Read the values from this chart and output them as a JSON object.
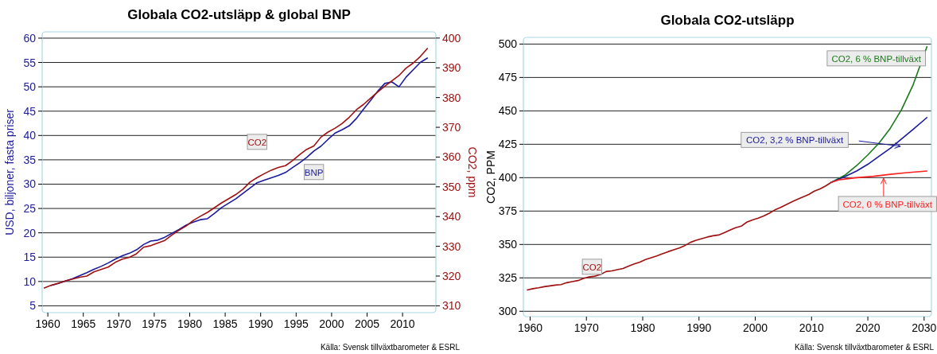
{
  "chart_data": [
    {
      "type": "line",
      "title": "Globala CO2-utsläpp & global BNP",
      "ylabel": "USD, biljoner, fasta priser",
      "y2label": "CO2, ppm",
      "xlim": [
        1959.2,
        2014.7
      ],
      "xticks": [
        1960,
        1965,
        1970,
        1975,
        1980,
        1985,
        1990,
        1995,
        2000,
        2005,
        2010
      ],
      "ylim": [
        3.6,
        61.3
      ],
      "yticks": [
        5,
        10,
        15,
        20,
        25,
        30,
        35,
        40,
        45,
        50,
        55,
        60
      ],
      "y2lim": [
        307.7,
        402.1
      ],
      "y2ticks": [
        310,
        320,
        330,
        340,
        350,
        360,
        370,
        380,
        390,
        400
      ],
      "grid": "y",
      "annotations": [
        "Källa: Svensk tillväxtbarometer & ESRL"
      ],
      "series": [
        {
          "name": "BNP",
          "color": "#1a1a9c",
          "axis": "y",
          "x": [
            1960.5,
            1961.5,
            1962.5,
            1963.5,
            1964.5,
            1965.5,
            1966.5,
            1967.5,
            1968.5,
            1969.5,
            1970.5,
            1971.5,
            1972.5,
            1973.5,
            1974.5,
            1975.5,
            1976.5,
            1977.5,
            1978.5,
            1979.5,
            1980.5,
            1981.5,
            1982.5,
            1983.5,
            1984.5,
            1985.5,
            1986.5,
            1987.5,
            1988.5,
            1989.5,
            1990.5,
            1991.5,
            1992.5,
            1993.5,
            1994.5,
            1995.5,
            1996.5,
            1997.5,
            1998.5,
            1999.5,
            2000.5,
            2001.5,
            2002.5,
            2003.5,
            2004.5,
            2005.5,
            2006.5,
            2007.5,
            2008.5,
            2009.5,
            2010.5,
            2011.5,
            2012.5,
            2013.5
          ],
          "values": [
            9.2,
            9.6,
            10.1,
            10.6,
            11.2,
            11.8,
            12.5,
            13.1,
            13.8,
            14.6,
            15.3,
            15.8,
            16.5,
            17.6,
            18.3,
            18.5,
            19.1,
            19.9,
            20.7,
            21.6,
            22.2,
            22.7,
            22.9,
            24.0,
            25.2,
            26.1,
            27.0,
            28.1,
            29.2,
            30.3,
            30.8,
            31.3,
            31.8,
            32.4,
            33.4,
            34.4,
            35.5,
            36.8,
            37.8,
            39.2,
            40.5,
            41.2,
            42.0,
            43.5,
            45.4,
            47.2,
            49.1,
            50.7,
            51.0,
            50.0,
            52.0,
            53.5,
            55.0,
            55.9
          ]
        },
        {
          "name": "CO2",
          "color": "#a01010",
          "axis": "y2",
          "x": [
            1959.5,
            1960.5,
            1961.5,
            1962.5,
            1963.5,
            1964.5,
            1965.5,
            1966.5,
            1967.5,
            1968.5,
            1969.5,
            1970.5,
            1971.5,
            1972.5,
            1973.5,
            1974.5,
            1975.5,
            1976.5,
            1977.5,
            1978.5,
            1979.5,
            1980.5,
            1981.5,
            1982.5,
            1983.5,
            1984.5,
            1985.5,
            1986.5,
            1987.5,
            1988.5,
            1989.5,
            1990.5,
            1991.5,
            1992.5,
            1993.5,
            1994.5,
            1995.5,
            1996.5,
            1997.5,
            1998.5,
            1999.5,
            2000.5,
            2001.5,
            2002.5,
            2003.5,
            2004.5,
            2005.5,
            2006.5,
            2007.5,
            2008.5,
            2009.5,
            2010.5,
            2011.5,
            2012.5,
            2013.5
          ],
          "values": [
            316.0,
            316.9,
            317.6,
            318.4,
            319.0,
            319.6,
            320.0,
            321.4,
            322.2,
            323.0,
            324.6,
            325.7,
            326.3,
            327.5,
            329.7,
            330.2,
            331.1,
            332.0,
            333.8,
            335.4,
            336.8,
            338.7,
            340.1,
            341.4,
            343.0,
            344.6,
            346.0,
            347.4,
            349.2,
            351.6,
            353.1,
            354.4,
            355.6,
            356.5,
            357.1,
            358.8,
            360.8,
            362.6,
            363.7,
            366.7,
            368.4,
            369.7,
            371.3,
            373.4,
            375.9,
            377.7,
            379.8,
            381.9,
            383.8,
            385.6,
            387.4,
            389.9,
            391.6,
            393.8,
            396.5
          ]
        }
      ]
    },
    {
      "type": "line",
      "title": "Globala CO2-utsläpp",
      "ylabel": "CO2, PPM",
      "xlim": [
        1958.8,
        2031.3
      ],
      "xticks": [
        1960,
        1970,
        1980,
        1990,
        2000,
        2010,
        2020,
        2030
      ],
      "ylim": [
        296,
        505
      ],
      "yticks": [
        300,
        325,
        350,
        375,
        400,
        425,
        450,
        475,
        500
      ],
      "grid": "y",
      "annotations": [
        "Källa: Svensk tillväxtbarometer & ESRL"
      ],
      "series": [
        {
          "name": "CO2",
          "color": "#a01010",
          "x": [
            1959.5,
            1960.5,
            1961.5,
            1962.5,
            1963.5,
            1964.5,
            1965.5,
            1966.5,
            1967.5,
            1968.5,
            1969.5,
            1970.5,
            1971.5,
            1972.5,
            1973.5,
            1974.5,
            1975.5,
            1976.5,
            1977.5,
            1978.5,
            1979.5,
            1980.5,
            1981.5,
            1982.5,
            1983.5,
            1984.5,
            1985.5,
            1986.5,
            1987.5,
            1988.5,
            1989.5,
            1990.5,
            1991.5,
            1992.5,
            1993.5,
            1994.5,
            1995.5,
            1996.5,
            1997.5,
            1998.5,
            1999.5,
            2000.5,
            2001.5,
            2002.5,
            2003.5,
            2004.5,
            2005.5,
            2006.5,
            2007.5,
            2008.5,
            2009.5,
            2010.5,
            2011.5,
            2012.5,
            2013.5
          ],
          "values": [
            316.0,
            316.9,
            317.6,
            318.4,
            319.0,
            319.6,
            320.0,
            321.4,
            322.2,
            323.0,
            324.6,
            325.7,
            326.3,
            327.5,
            329.7,
            330.2,
            331.1,
            332.0,
            333.8,
            335.4,
            336.8,
            338.7,
            340.1,
            341.4,
            343.0,
            344.6,
            346.0,
            347.4,
            349.2,
            351.6,
            353.1,
            354.4,
            355.6,
            356.5,
            357.1,
            358.8,
            360.8,
            362.6,
            363.7,
            366.7,
            368.4,
            369.7,
            371.3,
            373.4,
            375.9,
            377.7,
            379.8,
            381.9,
            383.8,
            385.6,
            387.4,
            389.9,
            391.6,
            393.8,
            396.5
          ]
        },
        {
          "name": "CO2, 6 % BNP-tillväxt",
          "color": "#1a7a1a",
          "x": [
            2013.5,
            2016,
            2018,
            2020,
            2022,
            2024,
            2026,
            2028,
            2030.5
          ],
          "values": [
            396.5,
            402,
            409,
            417,
            426,
            437,
            451,
            469,
            498
          ]
        },
        {
          "name": "CO2, 3,2 % BNP-tillväxt",
          "color": "#1a1a9c",
          "x": [
            2013.5,
            2016,
            2018,
            2020,
            2022,
            2024,
            2026,
            2028,
            2030.5
          ],
          "values": [
            396.5,
            401,
            405,
            410,
            416,
            422,
            429,
            436,
            445
          ]
        },
        {
          "name": "CO2, 0 % BNP-tillväxt",
          "color": "#ff2020",
          "x": [
            2013.5,
            2015,
            2018,
            2021,
            2024,
            2027,
            2030.5
          ],
          "values": [
            396.5,
            398.5,
            400,
            401,
            402.5,
            403.8,
            405
          ]
        }
      ]
    }
  ]
}
